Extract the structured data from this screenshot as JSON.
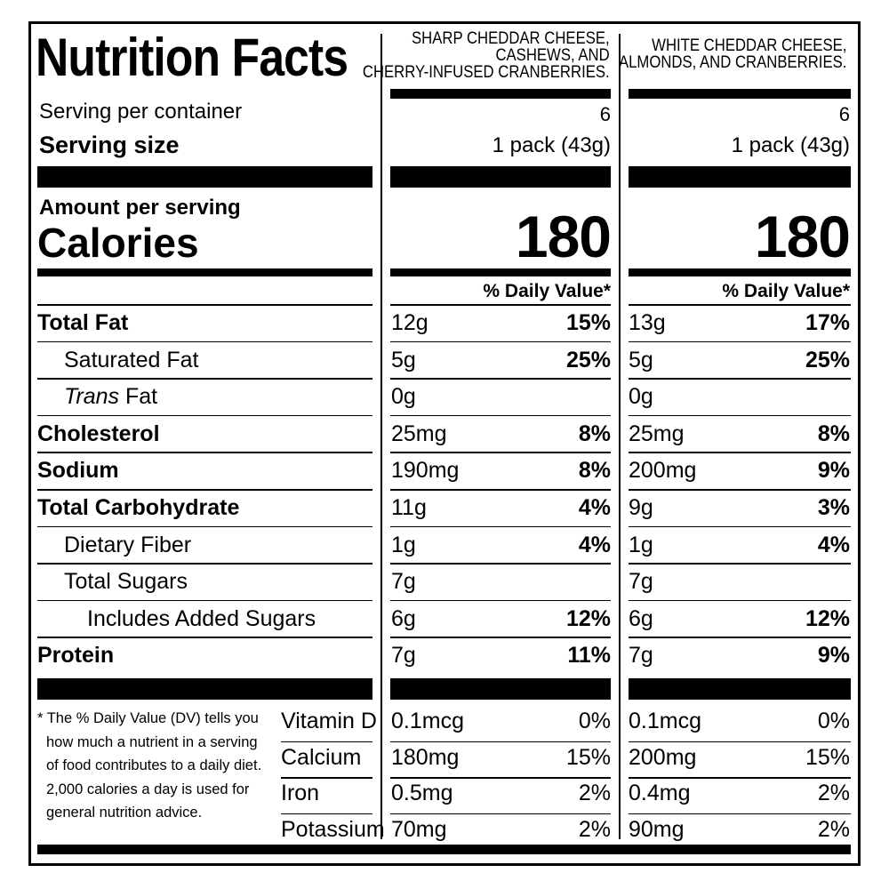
{
  "title": "Nutrition Facts",
  "serving_per_container_label": "Serving per container",
  "serving_size_label": "Serving size",
  "amount_per_serving_label": "Amount per serving",
  "calories_label": "Calories",
  "dv_header": "% Daily Value*",
  "products": [
    {
      "name_lines": [
        "SHARP CHEDDAR CHEESE,",
        "CASHEWS, AND",
        "CHERRY-INFUSED CRANBERRIES."
      ],
      "servings": "6",
      "serving_size": "1 pack (43g)",
      "calories": "180",
      "nutrients": [
        {
          "amount": "12g",
          "dv": "15%"
        },
        {
          "amount": "5g",
          "dv": "25%"
        },
        {
          "amount": "0g",
          "dv": ""
        },
        {
          "amount": "25mg",
          "dv": "8%"
        },
        {
          "amount": "190mg",
          "dv": "8%"
        },
        {
          "amount": "11g",
          "dv": "4%"
        },
        {
          "amount": "1g",
          "dv": "4%"
        },
        {
          "amount": "7g",
          "dv": ""
        },
        {
          "amount": "6g",
          "dv": "12%"
        },
        {
          "amount": "7g",
          "dv": "11%"
        }
      ],
      "vitamins": [
        {
          "amount": "0.1mcg",
          "dv": "0%"
        },
        {
          "amount": "180mg",
          "dv": "15%"
        },
        {
          "amount": "0.5mg",
          "dv": "2%"
        },
        {
          "amount": "70mg",
          "dv": "2%"
        }
      ]
    },
    {
      "name_lines": [
        "WHITE CHEDDAR CHEESE,",
        "ALMONDS, AND CRANBERRIES."
      ],
      "servings": "6",
      "serving_size": "1 pack (43g)",
      "calories": "180",
      "nutrients": [
        {
          "amount": "13g",
          "dv": "17%"
        },
        {
          "amount": "5g",
          "dv": "25%"
        },
        {
          "amount": "0g",
          "dv": ""
        },
        {
          "amount": "25mg",
          "dv": "8%"
        },
        {
          "amount": "200mg",
          "dv": "9%"
        },
        {
          "amount": "9g",
          "dv": "3%"
        },
        {
          "amount": "1g",
          "dv": "4%"
        },
        {
          "amount": "7g",
          "dv": ""
        },
        {
          "amount": "6g",
          "dv": "12%"
        },
        {
          "amount": "7g",
          "dv": "9%"
        }
      ],
      "vitamins": [
        {
          "amount": "0.1mcg",
          "dv": "0%"
        },
        {
          "amount": "200mg",
          "dv": "15%"
        },
        {
          "amount": "0.4mg",
          "dv": "2%"
        },
        {
          "amount": "90mg",
          "dv": "2%"
        }
      ]
    }
  ],
  "nutrient_labels": [
    {
      "label": "Total Fat",
      "bold": true,
      "indent": 0
    },
    {
      "label": "Saturated Fat",
      "bold": false,
      "indent": 1
    },
    {
      "label": "Trans",
      "label_suffix": " Fat",
      "bold": false,
      "indent": 1,
      "italic_prefix": true
    },
    {
      "label": "Cholesterol",
      "bold": true,
      "indent": 0
    },
    {
      "label": "Sodium",
      "bold": true,
      "indent": 0
    },
    {
      "label": "Total Carbohydrate",
      "bold": true,
      "indent": 0
    },
    {
      "label": "Dietary Fiber",
      "bold": false,
      "indent": 1
    },
    {
      "label": "Total Sugars",
      "bold": false,
      "indent": 1
    },
    {
      "label": "Includes Added Sugars",
      "bold": false,
      "indent": 2
    },
    {
      "label": "Protein",
      "bold": true,
      "indent": 0
    }
  ],
  "vitamin_labels": [
    "Vitamin D",
    "Calcium",
    "Iron",
    "Potassium"
  ],
  "footnote_lines": [
    "* The % Daily Value (DV) tells you",
    "how much a nutrient in a serving",
    "of food contributes to a daily diet.",
    "2,000 calories a day is used for",
    "general nutrition advice."
  ]
}
